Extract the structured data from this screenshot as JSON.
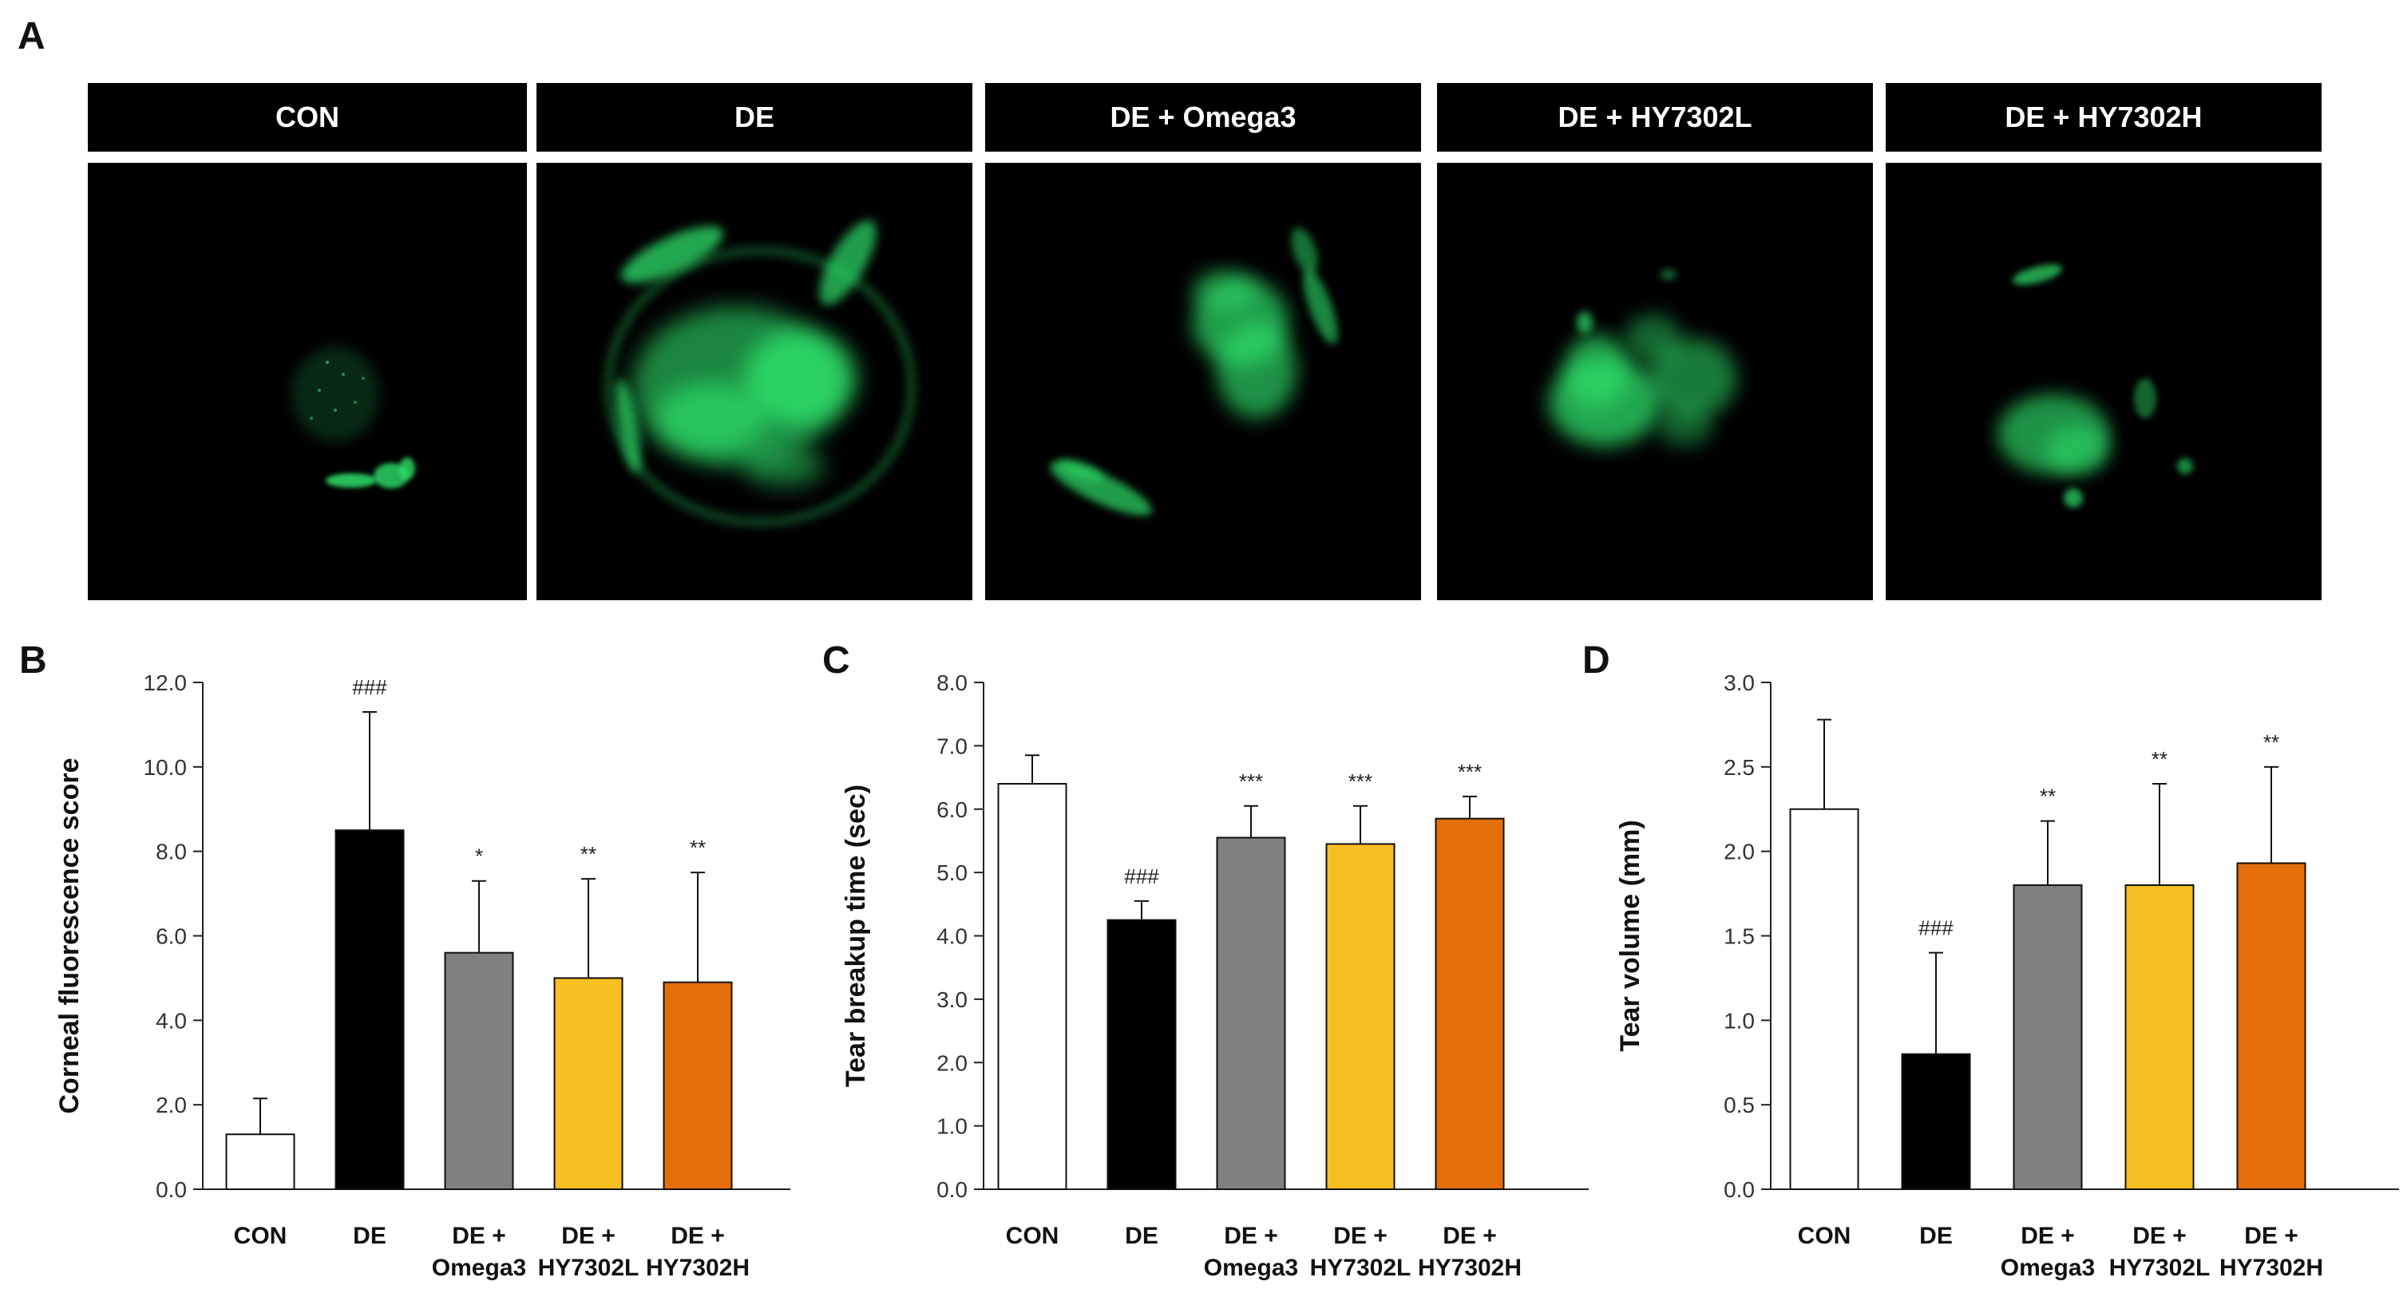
{
  "panels": {
    "A": "A",
    "B": "B",
    "C": "C",
    "D": "D"
  },
  "images": {
    "labels": [
      "CON",
      "DE",
      "DE + Omega3",
      "DE + HY7302L",
      "DE + HY7302H"
    ]
  },
  "colors": {
    "CON": "#ffffff",
    "DE": "#000000",
    "Omega3": "#808080",
    "HY7302L": "#f8bf22",
    "HY7302H": "#e46d0c",
    "stain": "#2ee06b"
  },
  "chart_data": [
    {
      "type": "bar",
      "panel": "B",
      "categories": [
        "CON",
        "DE",
        "DE + Omega3",
        "DE + HY7302L",
        "DE + HY7302H"
      ],
      "category_lines": [
        [
          "CON"
        ],
        [
          "DE"
        ],
        [
          "DE +",
          "Omega3"
        ],
        [
          "DE +",
          "HY7302L"
        ],
        [
          "DE +",
          "HY7302H"
        ]
      ],
      "values": [
        1.3,
        8.5,
        5.6,
        5.0,
        4.9
      ],
      "errors": [
        0.85,
        2.8,
        1.7,
        2.35,
        2.6
      ],
      "significance": [
        "",
        "###",
        "*",
        "**",
        "**"
      ],
      "ylabel": "Corneal fluorescence score",
      "ylim": [
        0,
        12
      ],
      "yticks": [
        "0.0",
        "2.0",
        "4.0",
        "6.0",
        "8.0",
        "10.0",
        "12.0"
      ]
    },
    {
      "type": "bar",
      "panel": "C",
      "categories": [
        "CON",
        "DE",
        "DE + Omega3",
        "DE + HY7302L",
        "DE + HY7302H"
      ],
      "category_lines": [
        [
          "CON"
        ],
        [
          "DE"
        ],
        [
          "DE +",
          "Omega3"
        ],
        [
          "DE +",
          "HY7302L"
        ],
        [
          "DE +",
          "HY7302H"
        ]
      ],
      "values": [
        6.4,
        4.25,
        5.55,
        5.45,
        5.85
      ],
      "errors": [
        0.45,
        0.3,
        0.5,
        0.6,
        0.35
      ],
      "significance": [
        "",
        "###",
        "***",
        "***",
        "***"
      ],
      "ylabel": "Tear breakup time (sec)",
      "ylim": [
        0,
        8
      ],
      "yticks": [
        "0.0",
        "1.0",
        "2.0",
        "3.0",
        "4.0",
        "5.0",
        "6.0",
        "7.0",
        "8.0"
      ]
    },
    {
      "type": "bar",
      "panel": "D",
      "categories": [
        "CON",
        "DE",
        "DE + Omega3",
        "DE + HY7302L",
        "DE + HY7302H"
      ],
      "category_lines": [
        [
          "CON"
        ],
        [
          "DE"
        ],
        [
          "DE +",
          "Omega3"
        ],
        [
          "DE +",
          "HY7302L"
        ],
        [
          "DE +",
          "HY7302H"
        ]
      ],
      "values": [
        2.25,
        0.8,
        1.8,
        1.8,
        1.93
      ],
      "errors": [
        0.53,
        0.6,
        0.38,
        0.6,
        0.57
      ],
      "significance": [
        "",
        "###",
        "**",
        "**",
        "**"
      ],
      "ylabel": "Tear  volume (mm)",
      "ylim": [
        0,
        3
      ],
      "yticks": [
        "0.0",
        "0.5",
        "1.0",
        "1.5",
        "2.0",
        "2.5",
        "3.0"
      ]
    }
  ]
}
